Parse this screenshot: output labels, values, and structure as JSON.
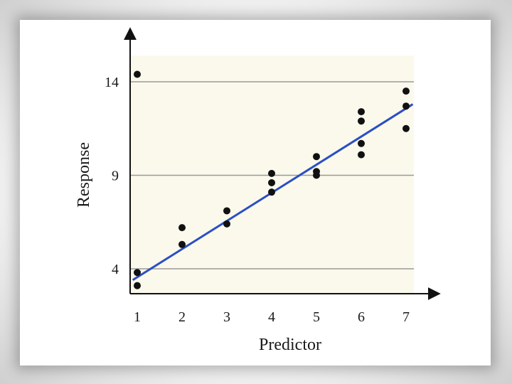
{
  "chart_data": {
    "type": "scatter",
    "xlabel": "Predictor",
    "ylabel": "Response",
    "xlim": [
      1,
      7
    ],
    "ylim": [
      2.5,
      16
    ],
    "xticks": [
      1,
      2,
      3,
      4,
      5,
      6,
      7
    ],
    "yticks": [
      4,
      9,
      14
    ],
    "grid": "horizontal",
    "points": [
      {
        "x": 1,
        "y": 14.4
      },
      {
        "x": 1,
        "y": 3.8
      },
      {
        "x": 1,
        "y": 3.1
      },
      {
        "x": 2,
        "y": 6.2
      },
      {
        "x": 2,
        "y": 5.3
      },
      {
        "x": 3,
        "y": 7.1
      },
      {
        "x": 3,
        "y": 6.4
      },
      {
        "x": 4,
        "y": 9.1
      },
      {
        "x": 4,
        "y": 8.6
      },
      {
        "x": 4,
        "y": 8.1
      },
      {
        "x": 5,
        "y": 10.0
      },
      {
        "x": 5,
        "y": 9.2
      },
      {
        "x": 5,
        "y": 9.0
      },
      {
        "x": 6,
        "y": 12.4
      },
      {
        "x": 6,
        "y": 11.9
      },
      {
        "x": 6,
        "y": 10.7
      },
      {
        "x": 6,
        "y": 10.1
      },
      {
        "x": 7,
        "y": 13.5
      },
      {
        "x": 7,
        "y": 12.7
      },
      {
        "x": 7,
        "y": 11.5
      }
    ],
    "fit_line": {
      "x": [
        0.9,
        7.15
      ],
      "y": [
        3.4,
        12.8
      ]
    },
    "colors": {
      "plot_background": "#fbf9ec",
      "gridline": "#9a9a9a",
      "points": "#111111",
      "fit_line": "#2a4fc4",
      "axes": "#111111"
    }
  }
}
